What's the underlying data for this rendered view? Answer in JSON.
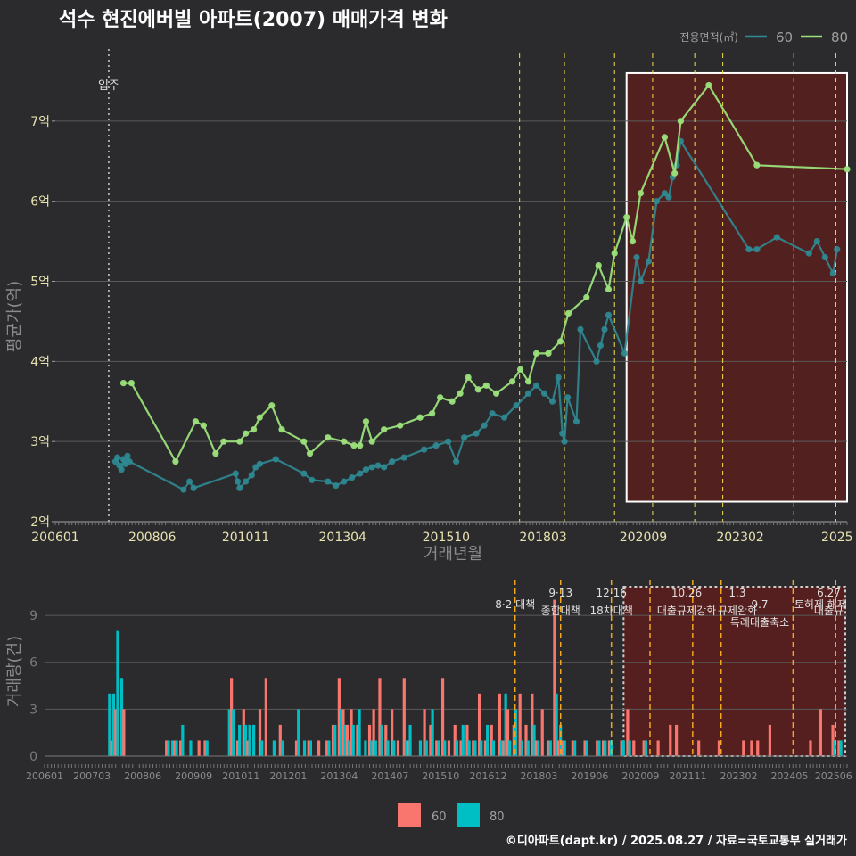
{
  "title": "석수 현진에버빌 아파트(2007) 매매가격 변화",
  "source": "©디아파트(dapt.kr) / 2025.08.27 / 자료=국토교통부 실거래가",
  "colors": {
    "s60": "#2f8a93",
    "s80": "#9be07a",
    "bar60": "#f8766d",
    "bar80": "#00bfc4",
    "policy": "#f2e14c",
    "policy_bar": "#f2a81d",
    "highlight": "#5a1e1e",
    "grid": "#5a5a5a"
  },
  "chart_data": [
    {
      "type": "line",
      "title": "석수 현진에버빌 아파트(2007) 매매가격 변화",
      "xlabel": "거래년월",
      "ylabel": "평균가(억)",
      "xlim": [
        2006.0,
        2025.75
      ],
      "ylim": [
        2,
        7.9
      ],
      "x_ticks": [
        {
          "x": 2006.0,
          "label": "200601"
        },
        {
          "x": 2008.417,
          "label": "200806"
        },
        {
          "x": 2010.75,
          "label": "201011"
        },
        {
          "x": 2013.167,
          "label": "201304"
        },
        {
          "x": 2015.75,
          "label": "201510"
        },
        {
          "x": 2018.167,
          "label": "201803"
        },
        {
          "x": 2020.667,
          "label": "202009"
        },
        {
          "x": 2023.083,
          "label": "202302"
        },
        {
          "x": 2025.5,
          "label": "2025"
        }
      ],
      "y_ticks": [
        {
          "v": 2,
          "label": "2억"
        },
        {
          "v": 3,
          "label": "3억"
        },
        {
          "v": 4,
          "label": "4억"
        },
        {
          "v": 5,
          "label": "5억"
        },
        {
          "v": 6,
          "label": "6억"
        },
        {
          "v": 7,
          "label": "7억"
        }
      ],
      "legend_title": "전용면적(㎡)",
      "legend": [
        {
          "name": "60",
          "color": "#2f8a93"
        },
        {
          "name": "80",
          "color": "#9be07a"
        }
      ],
      "move_in": {
        "x": 2007.333,
        "label": "입주"
      },
      "policy_lines": [
        2017.58,
        2018.7,
        2019.95,
        2020.9,
        2021.95,
        2022.65,
        2024.42,
        2025.47
      ],
      "highlight": {
        "x_from": 2020.25,
        "x_to": 2025.75,
        "y_from": 2.25,
        "y_to": 7.6
      },
      "series": [
        {
          "name": "60",
          "points": [
            [
              2007.5,
              2.75
            ],
            [
              2007.55,
              2.8
            ],
            [
              2007.6,
              2.7
            ],
            [
              2007.65,
              2.65
            ],
            [
              2007.7,
              2.78
            ],
            [
              2007.75,
              2.72
            ],
            [
              2007.8,
              2.82
            ],
            [
              2007.85,
              2.75
            ],
            [
              2009.2,
              2.4
            ],
            [
              2009.35,
              2.5
            ],
            [
              2009.45,
              2.42
            ],
            [
              2010.5,
              2.6
            ],
            [
              2010.55,
              2.5
            ],
            [
              2010.6,
              2.42
            ],
            [
              2010.75,
              2.5
            ],
            [
              2010.9,
              2.58
            ],
            [
              2011.0,
              2.68
            ],
            [
              2011.1,
              2.72
            ],
            [
              2011.5,
              2.78
            ],
            [
              2012.2,
              2.6
            ],
            [
              2012.4,
              2.52
            ],
            [
              2012.8,
              2.5
            ],
            [
              2013.0,
              2.45
            ],
            [
              2013.2,
              2.5
            ],
            [
              2013.4,
              2.55
            ],
            [
              2013.6,
              2.6
            ],
            [
              2013.75,
              2.65
            ],
            [
              2013.9,
              2.68
            ],
            [
              2014.05,
              2.7
            ],
            [
              2014.2,
              2.68
            ],
            [
              2014.4,
              2.75
            ],
            [
              2014.7,
              2.8
            ],
            [
              2015.2,
              2.9
            ],
            [
              2015.5,
              2.95
            ],
            [
              2015.8,
              3.0
            ],
            [
              2016.0,
              2.75
            ],
            [
              2016.2,
              3.05
            ],
            [
              2016.5,
              3.1
            ],
            [
              2016.7,
              3.2
            ],
            [
              2016.9,
              3.35
            ],
            [
              2017.2,
              3.3
            ],
            [
              2017.5,
              3.45
            ],
            [
              2017.8,
              3.6
            ],
            [
              2018.0,
              3.7
            ],
            [
              2018.2,
              3.6
            ],
            [
              2018.4,
              3.5
            ],
            [
              2018.55,
              3.8
            ],
            [
              2018.65,
              3.1
            ],
            [
              2018.7,
              3.0
            ],
            [
              2018.78,
              3.55
            ],
            [
              2019.0,
              3.25
            ],
            [
              2019.1,
              4.4
            ],
            [
              2019.5,
              4.0
            ],
            [
              2019.6,
              4.2
            ],
            [
              2019.7,
              4.4
            ],
            [
              2019.8,
              4.58
            ],
            [
              2020.2,
              4.1
            ],
            [
              2020.5,
              5.3
            ],
            [
              2020.6,
              5.0
            ],
            [
              2020.8,
              5.25
            ],
            [
              2021.0,
              6.0
            ],
            [
              2021.2,
              6.1
            ],
            [
              2021.3,
              6.05
            ],
            [
              2021.4,
              6.3
            ],
            [
              2021.5,
              6.45
            ],
            [
              2021.6,
              6.75
            ],
            [
              2023.3,
              5.4
            ],
            [
              2023.5,
              5.4
            ],
            [
              2024.0,
              5.55
            ],
            [
              2024.8,
              5.35
            ],
            [
              2025.0,
              5.5
            ],
            [
              2025.2,
              5.3
            ],
            [
              2025.4,
              5.1
            ],
            [
              2025.5,
              5.4
            ]
          ]
        },
        {
          "name": "80",
          "points": [
            [
              2007.7,
              3.73
            ],
            [
              2007.9,
              3.73
            ],
            [
              2009.0,
              2.75
            ],
            [
              2009.5,
              3.25
            ],
            [
              2009.7,
              3.2
            ],
            [
              2010.0,
              2.85
            ],
            [
              2010.2,
              3.0
            ],
            [
              2010.6,
              3.0
            ],
            [
              2010.75,
              3.1
            ],
            [
              2010.95,
              3.15
            ],
            [
              2011.1,
              3.3
            ],
            [
              2011.4,
              3.45
            ],
            [
              2011.65,
              3.15
            ],
            [
              2012.2,
              3.0
            ],
            [
              2012.35,
              2.85
            ],
            [
              2012.8,
              3.05
            ],
            [
              2013.2,
              3.0
            ],
            [
              2013.45,
              2.95
            ],
            [
              2013.6,
              2.95
            ],
            [
              2013.75,
              3.25
            ],
            [
              2013.9,
              3.0
            ],
            [
              2014.2,
              3.15
            ],
            [
              2014.6,
              3.2
            ],
            [
              2015.1,
              3.3
            ],
            [
              2015.4,
              3.35
            ],
            [
              2015.6,
              3.55
            ],
            [
              2015.9,
              3.5
            ],
            [
              2016.1,
              3.6
            ],
            [
              2016.3,
              3.8
            ],
            [
              2016.55,
              3.65
            ],
            [
              2016.75,
              3.7
            ],
            [
              2017.0,
              3.6
            ],
            [
              2017.4,
              3.75
            ],
            [
              2017.6,
              3.9
            ],
            [
              2017.8,
              3.75
            ],
            [
              2018.0,
              4.1
            ],
            [
              2018.3,
              4.1
            ],
            [
              2018.6,
              4.25
            ],
            [
              2018.8,
              4.6
            ],
            [
              2019.25,
              4.8
            ],
            [
              2019.55,
              5.2
            ],
            [
              2019.8,
              4.9
            ],
            [
              2019.95,
              5.35
            ],
            [
              2020.25,
              5.8
            ],
            [
              2020.4,
              5.5
            ],
            [
              2020.6,
              6.1
            ],
            [
              2021.2,
              6.8
            ],
            [
              2021.45,
              6.35
            ],
            [
              2021.6,
              7.0
            ],
            [
              2022.3,
              7.45
            ],
            [
              2023.5,
              6.45
            ],
            [
              2025.75,
              6.4
            ]
          ]
        }
      ]
    },
    {
      "type": "bar",
      "xlabel": "",
      "ylabel": "거래량(건)",
      "ylim": [
        0,
        11
      ],
      "y_ticks": [
        0,
        3,
        6,
        9
      ],
      "x_tick_labels": [
        "200601",
        "200703",
        "200806",
        "200909",
        "201011",
        "201201",
        "201304",
        "201407",
        "201510",
        "201612",
        "201803",
        "201906",
        "202009",
        "202111",
        "202302",
        "202405",
        "202506"
      ],
      "legend": [
        {
          "name": "60",
          "color": "#f8766d"
        },
        {
          "name": "80",
          "color": "#00bfc4"
        }
      ],
      "highlight": {
        "x_from": 2020.25,
        "x_to": 2025.75
      },
      "annotations": [
        {
          "x": 2017.58,
          "lines": [
            "8·2 대책"
          ],
          "row": 1
        },
        {
          "x": 2018.7,
          "lines": [
            "9·13",
            "종합대책"
          ],
          "row": 0
        },
        {
          "x": 2019.95,
          "lines": [
            "12·16",
            "18차대책"
          ],
          "row": 0
        },
        {
          "x": 2021.8,
          "lines": [
            "10.26",
            "대출규제강화"
          ],
          "row": 0
        },
        {
          "x": 2023.05,
          "lines": [
            "1.3",
            "규제완화"
          ],
          "row": 0
        },
        {
          "x": 2023.6,
          "lines": [
            "9.7",
            "특례대출축소"
          ],
          "row": 1
        },
        {
          "x": 2025.3,
          "lines": [
            "6.27",
            "대출규"
          ],
          "row": 0
        },
        {
          "x": 2025.1,
          "lines": [
            "토허제 해제"
          ],
          "row": 1
        }
      ],
      "bars": [
        [
          2007.55,
          0,
          4
        ],
        [
          2007.65,
          1,
          4
        ],
        [
          2007.75,
          3,
          8
        ],
        [
          2007.85,
          0,
          5
        ],
        [
          2007.95,
          3,
          0
        ],
        [
          2009.0,
          1,
          1
        ],
        [
          2009.1,
          0,
          1
        ],
        [
          2009.2,
          1,
          1
        ],
        [
          2009.35,
          1,
          2
        ],
        [
          2009.55,
          0,
          1
        ],
        [
          2009.8,
          1,
          0
        ],
        [
          2009.95,
          1,
          1
        ],
        [
          2010.5,
          0,
          3
        ],
        [
          2010.6,
          5,
          3
        ],
        [
          2010.75,
          1,
          2
        ],
        [
          2010.9,
          3,
          2
        ],
        [
          2011.0,
          1,
          2
        ],
        [
          2011.1,
          0,
          2
        ],
        [
          2011.3,
          3,
          1
        ],
        [
          2011.45,
          5,
          0
        ],
        [
          2011.6,
          0,
          1
        ],
        [
          2011.8,
          2,
          1
        ],
        [
          2012.2,
          1,
          3
        ],
        [
          2012.35,
          0,
          1
        ],
        [
          2012.5,
          1,
          1
        ],
        [
          2012.75,
          1,
          0
        ],
        [
          2012.95,
          1,
          1
        ],
        [
          2013.1,
          2,
          2
        ],
        [
          2013.25,
          5,
          3
        ],
        [
          2013.35,
          3,
          2
        ],
        [
          2013.45,
          2,
          1
        ],
        [
          2013.55,
          3,
          2
        ],
        [
          2013.7,
          2,
          3
        ],
        [
          2013.85,
          0,
          1
        ],
        [
          2014.0,
          2,
          1
        ],
        [
          2014.1,
          3,
          1
        ],
        [
          2014.25,
          5,
          2
        ],
        [
          2014.4,
          2,
          1
        ],
        [
          2014.55,
          3,
          1
        ],
        [
          2014.7,
          1,
          0
        ],
        [
          2014.85,
          5,
          1
        ],
        [
          2014.95,
          1,
          2
        ],
        [
          2015.2,
          0,
          1
        ],
        [
          2015.35,
          3,
          1
        ],
        [
          2015.5,
          2,
          3
        ],
        [
          2015.65,
          1,
          1
        ],
        [
          2015.8,
          5,
          1
        ],
        [
          2015.95,
          1,
          0
        ],
        [
          2016.1,
          2,
          1
        ],
        [
          2016.25,
          1,
          2
        ],
        [
          2016.4,
          2,
          1
        ],
        [
          2016.55,
          1,
          1
        ],
        [
          2016.7,
          4,
          1
        ],
        [
          2016.85,
          1,
          2
        ],
        [
          2017.0,
          2,
          1
        ],
        [
          2017.2,
          4,
          1
        ],
        [
          2017.3,
          1,
          4
        ],
        [
          2017.4,
          3,
          1
        ],
        [
          2017.55,
          2,
          3
        ],
        [
          2017.7,
          4,
          1
        ],
        [
          2017.85,
          2,
          1
        ],
        [
          2018.0,
          4,
          2
        ],
        [
          2018.1,
          1,
          1
        ],
        [
          2018.25,
          3,
          0
        ],
        [
          2018.4,
          1,
          1
        ],
        [
          2018.55,
          10,
          4
        ],
        [
          2018.65,
          1,
          2
        ],
        [
          2018.75,
          1,
          1
        ],
        [
          2019.0,
          1,
          1
        ],
        [
          2019.3,
          1,
          1
        ],
        [
          2019.6,
          1,
          1
        ],
        [
          2019.75,
          1,
          1
        ],
        [
          2019.9,
          1,
          1
        ],
        [
          2020.2,
          1,
          1
        ],
        [
          2020.35,
          3,
          1
        ],
        [
          2020.5,
          1,
          0
        ],
        [
          2020.75,
          1,
          1
        ],
        [
          2021.1,
          1,
          0
        ],
        [
          2021.4,
          2,
          0
        ],
        [
          2021.55,
          2,
          0
        ],
        [
          2022.1,
          1,
          0
        ],
        [
          2022.6,
          1,
          0
        ],
        [
          2023.2,
          1,
          0
        ],
        [
          2023.4,
          1,
          0
        ],
        [
          2023.55,
          1,
          0
        ],
        [
          2023.85,
          2,
          0
        ],
        [
          2024.85,
          1,
          0
        ],
        [
          2025.1,
          3,
          0
        ],
        [
          2025.4,
          2,
          1
        ],
        [
          2025.55,
          1,
          1
        ]
      ]
    }
  ]
}
